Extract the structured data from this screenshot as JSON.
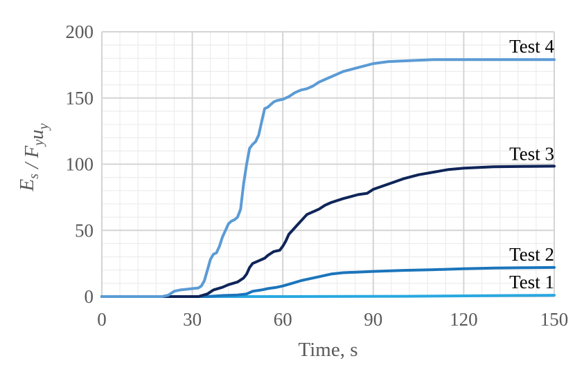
{
  "chart_data": {
    "type": "line",
    "title": "",
    "xlabel": "Time, s",
    "ylabel": {
      "parts": [
        {
          "t": "E",
          "sub": "s"
        },
        {
          "t": " / "
        },
        {
          "t": "F",
          "sub": "y"
        },
        {
          "t": "u",
          "sub": "y"
        }
      ]
    },
    "xlim": [
      0,
      150
    ],
    "ylim": [
      0,
      200
    ],
    "xticks": [
      0,
      30,
      60,
      90,
      120,
      150
    ],
    "yticks": [
      0,
      50,
      100,
      150,
      200
    ],
    "x_minor_step": 6,
    "y_minor_step": 10,
    "grid": true,
    "legend": "inline labels near line ends",
    "series": [
      {
        "name": "Test 1",
        "color": "#29a8e0",
        "label_at": [
          150,
          1
        ],
        "points": [
          [
            0,
            0
          ],
          [
            60,
            0
          ],
          [
            100,
            0.2
          ],
          [
            120,
            0.5
          ],
          [
            135,
            0.8
          ],
          [
            150,
            1.0
          ]
        ]
      },
      {
        "name": "Test 2",
        "color": "#1b75bb",
        "label_at": [
          150,
          22
        ],
        "points": [
          [
            0,
            0
          ],
          [
            35,
            0
          ],
          [
            40,
            0.8
          ],
          [
            45,
            1.2
          ],
          [
            48,
            2
          ],
          [
            50,
            4
          ],
          [
            53,
            5
          ],
          [
            55,
            6
          ],
          [
            58,
            7
          ],
          [
            60,
            8
          ],
          [
            63,
            10
          ],
          [
            66,
            12
          ],
          [
            68,
            13
          ],
          [
            72,
            15
          ],
          [
            76,
            17
          ],
          [
            80,
            18
          ],
          [
            90,
            19
          ],
          [
            100,
            19.8
          ],
          [
            110,
            20.3
          ],
          [
            120,
            21
          ],
          [
            130,
            21.5
          ],
          [
            140,
            21.8
          ],
          [
            150,
            22
          ]
        ]
      },
      {
        "name": "Test 3",
        "color": "#0f2559",
        "label_at": [
          150,
          98
        ],
        "points": [
          [
            0,
            0
          ],
          [
            32,
            0
          ],
          [
            35,
            2
          ],
          [
            37,
            5
          ],
          [
            40,
            7
          ],
          [
            42,
            9
          ],
          [
            45,
            11
          ],
          [
            47,
            14
          ],
          [
            48,
            17
          ],
          [
            49,
            22
          ],
          [
            50,
            25
          ],
          [
            52,
            27
          ],
          [
            54,
            29
          ],
          [
            55,
            31
          ],
          [
            57,
            34
          ],
          [
            59,
            35
          ],
          [
            60,
            38
          ],
          [
            61,
            42
          ],
          [
            62,
            47
          ],
          [
            64,
            52
          ],
          [
            66,
            57
          ],
          [
            68,
            62
          ],
          [
            70,
            64
          ],
          [
            72,
            66
          ],
          [
            74,
            69
          ],
          [
            76,
            71
          ],
          [
            80,
            74
          ],
          [
            85,
            77
          ],
          [
            88,
            78
          ],
          [
            90,
            81
          ],
          [
            95,
            85
          ],
          [
            100,
            89
          ],
          [
            105,
            92
          ],
          [
            110,
            94
          ],
          [
            115,
            96
          ],
          [
            120,
            97
          ],
          [
            130,
            98
          ],
          [
            140,
            98.3
          ],
          [
            150,
            98.5
          ]
        ]
      },
      {
        "name": "Test 4",
        "color": "#5b9bd5",
        "label_at": [
          150,
          179
        ],
        "points": [
          [
            0,
            0
          ],
          [
            20,
            0
          ],
          [
            22,
            1
          ],
          [
            24,
            4
          ],
          [
            26,
            5
          ],
          [
            28,
            5.5
          ],
          [
            30,
            6
          ],
          [
            32,
            6.5
          ],
          [
            33,
            8
          ],
          [
            34,
            12
          ],
          [
            35,
            20
          ],
          [
            36,
            28
          ],
          [
            37,
            32
          ],
          [
            38,
            33
          ],
          [
            39,
            38
          ],
          [
            40,
            45
          ],
          [
            41,
            50
          ],
          [
            42,
            55
          ],
          [
            43,
            57
          ],
          [
            44,
            58
          ],
          [
            45,
            60
          ],
          [
            46,
            66
          ],
          [
            47,
            85
          ],
          [
            48,
            100
          ],
          [
            49,
            112
          ],
          [
            50,
            115
          ],
          [
            51,
            117
          ],
          [
            52,
            122
          ],
          [
            53,
            132
          ],
          [
            54,
            142
          ],
          [
            55,
            143
          ],
          [
            56,
            145
          ],
          [
            57,
            147
          ],
          [
            58,
            148
          ],
          [
            60,
            149
          ],
          [
            62,
            151
          ],
          [
            64,
            154
          ],
          [
            66,
            156
          ],
          [
            68,
            157
          ],
          [
            70,
            159
          ],
          [
            72,
            162
          ],
          [
            75,
            165
          ],
          [
            78,
            168
          ],
          [
            80,
            170
          ],
          [
            85,
            173
          ],
          [
            90,
            176
          ],
          [
            95,
            177.5
          ],
          [
            100,
            178
          ],
          [
            110,
            179
          ],
          [
            150,
            179
          ]
        ]
      }
    ]
  }
}
